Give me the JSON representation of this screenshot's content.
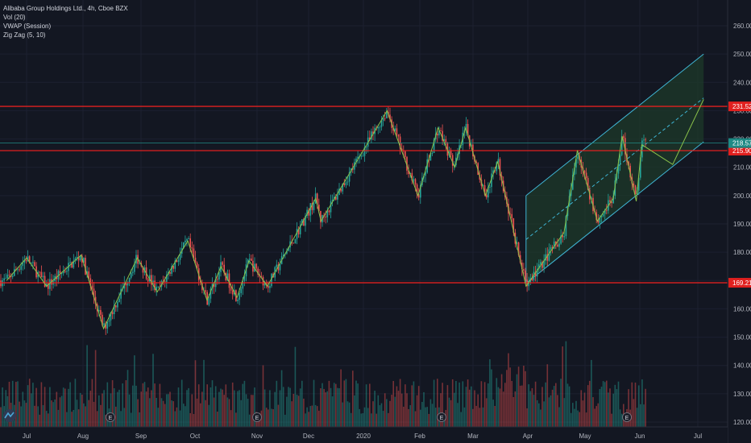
{
  "header": {
    "symbol_line": "Alibaba Group Holdings Ltd., 4h, Cboe BZX",
    "indicators": [
      "Vol (20)",
      "VWAP (Session)",
      "Zig Zag (5, 10)"
    ]
  },
  "colors": {
    "background": "#131722",
    "up": "#26a69a",
    "down": "#ef5350",
    "level_line": "#e0201f",
    "zigzag": "#8bc34a",
    "channel_border": "#3fb5d4",
    "channel_fill": "#1e3a2a",
    "price_tag": "#1f8a85"
  },
  "chart_data": {
    "type": "candlestick",
    "title": "Alibaba Group Holdings Ltd., 4h, Cboe BZX",
    "xlabel": "",
    "ylabel": "",
    "y_ticks": [
      120,
      130,
      140,
      150,
      160,
      170,
      180,
      190,
      200,
      210,
      220,
      230,
      240,
      250,
      260
    ],
    "x_ticks": [
      "Jul",
      "Aug",
      "Sep",
      "Oct",
      "Nov",
      "Dec",
      "2020",
      "Feb",
      "Mar",
      "Apr",
      "May",
      "Jun",
      "Jul"
    ],
    "ylim": [
      118,
      268
    ],
    "horizontal_levels": [
      {
        "price": 231.52,
        "label": "231.52"
      },
      {
        "price": 215.9,
        "label": "215.90"
      },
      {
        "price": 169.21,
        "label": "169.21"
      }
    ],
    "last_price": {
      "price": 218.57,
      "label": "218.57"
    },
    "zigzag_pivots": [
      {
        "date": "2019-06-20",
        "price": 170
      },
      {
        "date": "2019-07-01",
        "price": 178
      },
      {
        "date": "2019-07-12",
        "price": 168
      },
      {
        "date": "2019-07-31",
        "price": 179
      },
      {
        "date": "2019-08-12",
        "price": 153
      },
      {
        "date": "2019-08-30",
        "price": 178
      },
      {
        "date": "2019-09-10",
        "price": 166
      },
      {
        "date": "2019-09-27",
        "price": 184
      },
      {
        "date": "2019-10-07",
        "price": 163
      },
      {
        "date": "2019-10-14",
        "price": 175
      },
      {
        "date": "2019-10-22",
        "price": 164
      },
      {
        "date": "2019-10-28",
        "price": 177
      },
      {
        "date": "2019-11-07",
        "price": 168
      },
      {
        "date": "2019-12-05",
        "price": 199
      },
      {
        "date": "2019-12-08",
        "price": 191
      },
      {
        "date": "2020-01-14",
        "price": 230
      },
      {
        "date": "2020-01-31",
        "price": 200
      },
      {
        "date": "2020-02-11",
        "price": 224
      },
      {
        "date": "2020-02-20",
        "price": 210
      },
      {
        "date": "2020-02-26",
        "price": 224
      },
      {
        "date": "2020-03-08",
        "price": 200
      },
      {
        "date": "2020-03-15",
        "price": 212
      },
      {
        "date": "2020-03-31",
        "price": 168
      },
      {
        "date": "2020-04-20",
        "price": 187
      },
      {
        "date": "2020-04-27",
        "price": 216
      },
      {
        "date": "2020-05-08",
        "price": 191
      },
      {
        "date": "2020-05-17",
        "price": 199
      },
      {
        "date": "2020-05-22",
        "price": 221
      },
      {
        "date": "2020-05-30",
        "price": 198
      },
      {
        "date": "2020-06-02",
        "price": 218
      }
    ],
    "channel": {
      "start": {
        "date": "2020-03-31",
        "lower": 169,
        "upper": 200
      },
      "end": {
        "date": "2020-07-04",
        "lower": 219,
        "upper": 250
      }
    },
    "projection": [
      {
        "date": "2020-06-02",
        "price": 218
      },
      {
        "date": "2020-06-18",
        "price": 211
      },
      {
        "date": "2020-07-04",
        "price": 234
      }
    ]
  }
}
